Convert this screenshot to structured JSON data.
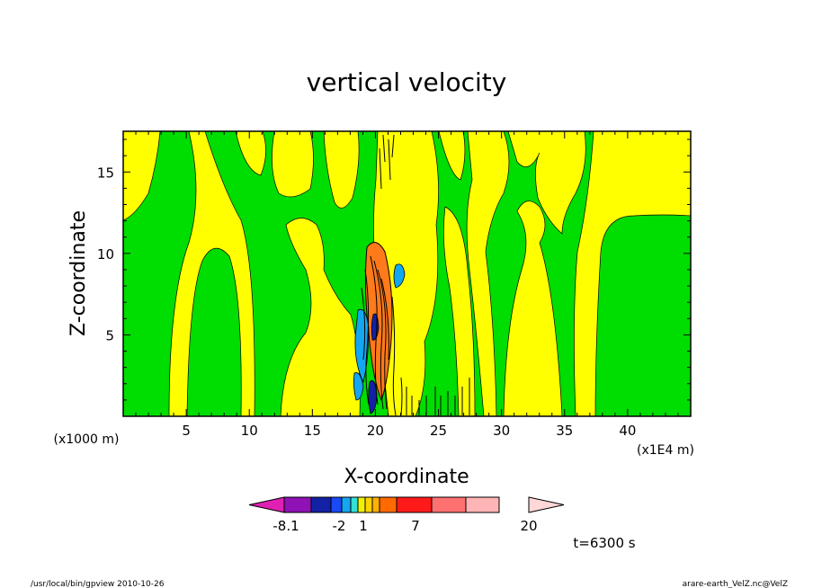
{
  "chart_data": {
    "type": "heatmap",
    "title": "vertical velocity",
    "xlabel": "X-coordinate",
    "ylabel": "Z-coordinate",
    "x_unit_left": "(x1000 m)",
    "x_unit_right": "(x1E4 m)",
    "xlim": [
      0,
      45
    ],
    "ylim": [
      0,
      17.5
    ],
    "x_ticks": [
      "5",
      "10",
      "15",
      "20",
      "25",
      "30",
      "35",
      "40"
    ],
    "y_ticks": [
      "5",
      "10",
      "15"
    ],
    "time_label": "t=6300 s",
    "colorbar": {
      "colors": [
        "#e01fb3",
        "#8e12b5",
        "#1321a5",
        "#1a49f5",
        "#12a7f0",
        "#33e0d4",
        "#f0f000",
        "#ffd200",
        "#ffb000",
        "#ff6a00",
        "#ff1a1a",
        "#ff7070",
        "#ffb5b5",
        "#ffd7d7"
      ],
      "tick_labels": [
        "-8.1",
        "-2",
        "1",
        "7",
        "20"
      ]
    },
    "field_description_colors": {
      "positive_weak": "#ffff00",
      "negative_weak": "#00dd00",
      "moderate_negative": "#12a7f0",
      "moderate_positive": "#ff7a1a",
      "strong_negative": "#1321a5"
    }
  },
  "footer": {
    "left": "/usr/local/bin/gpview   2010-10-26",
    "right": "arare-earth_VelZ.nc@VelZ"
  }
}
